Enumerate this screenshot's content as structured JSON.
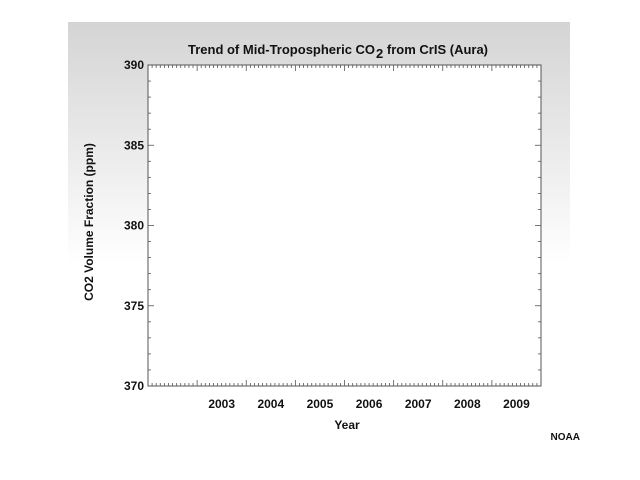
{
  "chart_data": {
    "type": "line",
    "title_main": "Trend of Mid-Tropospheric CO",
    "title_subscript": "2",
    "title_tail": " from CrIS (Aura)",
    "xlabel": "Year",
    "ylabel": "CO2 Volume Fraction (ppm)",
    "x_ticks": [
      "2003",
      "2004",
      "2005",
      "2006",
      "2007",
      "2008",
      "2009"
    ],
    "xlim": [
      2002,
      2010
    ],
    "ylim": [
      370,
      390
    ],
    "y_ticks": [
      370,
      375,
      380,
      385,
      390
    ],
    "y_minor_step": 1,
    "x_minor_per_year": 12,
    "series": [],
    "grid": false
  },
  "credit": "NOAA",
  "colors": {
    "background_top": "#d4d4d4",
    "background_bottom": "#ffffff",
    "plot_area": "#ffffff",
    "axis": "#555555",
    "text": "#111111"
  }
}
